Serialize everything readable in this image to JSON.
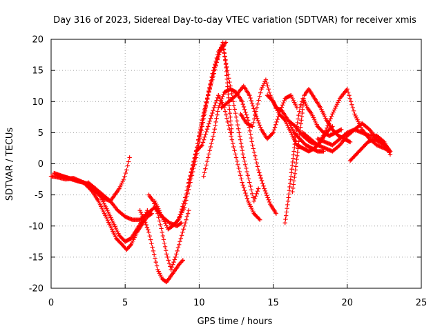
{
  "chart_data": {
    "type": "scatter",
    "title": "Day 316 of 2023, Sidereal Day-to-day VTEC variation (SDTVAR) for receiver xmis",
    "xlabel": "GPS time / hours",
    "ylabel": "SDTVAR / TECUs",
    "xlim": [
      0,
      25
    ],
    "ylim": [
      -20,
      20
    ],
    "xticks": [
      "0",
      "5",
      "10",
      "15",
      "20",
      "25"
    ],
    "yticks": [
      "-20",
      "-15",
      "-10",
      "-5",
      "0",
      "5",
      "10",
      "15",
      "20"
    ],
    "grid": true,
    "marker": "+",
    "color": "#ff0000",
    "series": [
      {
        "x": [
          0.0,
          0.5,
          1.0,
          1.5,
          2.0,
          2.5,
          3.0,
          3.5,
          4.0,
          4.3,
          4.6,
          4.9,
          5.1,
          5.3
        ],
        "y": [
          -2.0,
          -2.2,
          -2.5,
          -2.3,
          -2.8,
          -3.5,
          -4.5,
          -5.5,
          -6.0,
          -5.0,
          -4.0,
          -2.5,
          -1.0,
          1.0
        ]
      },
      {
        "x": [
          0.2,
          0.8,
          1.5,
          2.2,
          2.8,
          3.2,
          3.6,
          4.0,
          4.4,
          4.8,
          5.1,
          5.4,
          5.8,
          6.2,
          6.5,
          6.8
        ],
        "y": [
          -1.5,
          -2.0,
          -2.5,
          -3.0,
          -4.5,
          -6.0,
          -8.0,
          -10.0,
          -12.0,
          -13.0,
          -13.8,
          -13.0,
          -11.0,
          -9.5,
          -8.5,
          -8.0
        ]
      },
      {
        "x": [
          0.4,
          1.0,
          1.8,
          2.5,
          3.0,
          3.4,
          3.8,
          4.2,
          4.6,
          5.0,
          5.4,
          5.8,
          6.2,
          6.5
        ],
        "y": [
          -1.8,
          -2.2,
          -2.8,
          -3.2,
          -4.0,
          -5.5,
          -7.5,
          -9.5,
          -11.5,
          -12.5,
          -12.0,
          -10.5,
          -9.0,
          -7.5
        ]
      },
      {
        "x": [
          2.5,
          3.0,
          3.5,
          4.0,
          4.5,
          5.0,
          5.5,
          6.0,
          6.5,
          7.0,
          7.5,
          8.0,
          8.5,
          8.8
        ],
        "y": [
          -3.0,
          -4.0,
          -5.0,
          -6.0,
          -7.5,
          -8.5,
          -9.0,
          -9.0,
          -8.0,
          -7.0,
          -8.5,
          -9.5,
          -10.0,
          -9.5
        ]
      },
      {
        "x": [
          6.0,
          6.3,
          6.6,
          6.9,
          7.2,
          7.5,
          7.8,
          8.1,
          8.4,
          8.7,
          8.9
        ],
        "y": [
          -7.5,
          -9.0,
          -11.0,
          -14.0,
          -17.0,
          -18.5,
          -19.0,
          -18.0,
          -17.0,
          -16.0,
          -15.5
        ]
      },
      {
        "x": [
          6.6,
          6.9,
          7.2,
          7.5,
          7.8,
          8.1,
          8.4,
          8.7,
          9.0,
          9.3
        ],
        "y": [
          -5.0,
          -6.0,
          -8.0,
          -11.0,
          -14.5,
          -17.0,
          -15.0,
          -12.5,
          -10.0,
          -7.5
        ]
      },
      {
        "x": [
          7.0,
          7.3,
          7.6,
          7.9,
          8.2,
          8.6,
          9.0,
          9.4,
          9.8,
          10.2,
          10.6,
          11.0,
          11.4,
          11.8
        ],
        "y": [
          -6.0,
          -7.5,
          -9.0,
          -10.5,
          -10.0,
          -9.0,
          -7.0,
          -3.0,
          1.0,
          6.0,
          11.0,
          15.0,
          18.0,
          19.5
        ]
      },
      {
        "x": [
          8.6,
          9.0,
          9.4,
          9.8,
          10.2,
          10.6,
          11.0,
          11.3,
          11.6,
          11.8,
          12.0,
          12.2
        ],
        "y": [
          -9.0,
          -6.0,
          -2.0,
          2.0,
          7.0,
          11.0,
          14.5,
          17.5,
          19.5,
          16.0,
          10.0,
          5.0
        ]
      },
      {
        "x": [
          9.3,
          9.7,
          10.1,
          10.5,
          10.9,
          11.3,
          11.6,
          11.9,
          12.3,
          12.7,
          13.0,
          13.4,
          13.7,
          14.0
        ],
        "y": [
          -3.0,
          1.0,
          5.5,
          10.0,
          14.5,
          18.0,
          19.0,
          15.0,
          10.0,
          5.0,
          1.0,
          -3.0,
          -6.0,
          -4.0
        ]
      },
      {
        "x": [
          9.8,
          10.2,
          10.6,
          11.0,
          11.3,
          11.7,
          12.1,
          12.5,
          12.9,
          13.3,
          13.7,
          14.1
        ],
        "y": [
          2.0,
          3.0,
          6.0,
          9.0,
          11.0,
          9.0,
          5.0,
          1.0,
          -3.0,
          -6.0,
          -8.0,
          -9.0
        ]
      },
      {
        "x": [
          10.3,
          10.6,
          11.0,
          11.3,
          11.7,
          12.1,
          12.5,
          12.9,
          13.3,
          13.6,
          14.0,
          14.4,
          14.8,
          15.2
        ],
        "y": [
          -2.0,
          1.0,
          5.0,
          9.0,
          11.5,
          12.0,
          11.5,
          10.0,
          7.0,
          3.0,
          -1.0,
          -4.0,
          -6.5,
          -8.0
        ]
      },
      {
        "x": [
          11.5,
          12.0,
          12.5,
          13.0,
          13.4,
          13.8,
          14.2,
          14.6,
          15.0,
          15.4,
          15.8,
          16.2,
          16.6
        ],
        "y": [
          9.0,
          10.0,
          11.0,
          12.5,
          11.0,
          8.0,
          5.5,
          4.0,
          5.0,
          8.0,
          10.5,
          11.0,
          9.0
        ]
      },
      {
        "x": [
          12.8,
          13.2,
          13.6,
          13.9,
          14.2,
          14.5,
          14.8,
          15.2,
          15.6,
          16.0,
          16.4,
          16.8,
          17.2,
          17.6,
          18.0,
          18.4
        ],
        "y": [
          8.0,
          6.5,
          6.0,
          9.0,
          12.0,
          13.5,
          11.0,
          9.0,
          8.5,
          7.0,
          5.0,
          4.0,
          3.0,
          2.5,
          2.0,
          2.0
        ]
      },
      {
        "x": [
          14.6,
          15.0,
          15.4,
          15.8,
          16.2,
          16.6,
          17.0,
          17.4,
          17.8,
          18.2,
          18.6,
          19.0
        ],
        "y": [
          11.0,
          10.0,
          8.0,
          7.0,
          5.0,
          3.0,
          2.5,
          2.0,
          2.5,
          3.5,
          5.0,
          6.0
        ]
      },
      {
        "x": [
          15.8,
          16.0,
          16.2,
          16.4,
          16.6,
          16.8,
          17.0,
          17.3,
          17.6,
          18.0,
          18.4,
          18.8,
          19.2,
          19.6
        ],
        "y": [
          -9.5,
          -6.0,
          -2.0,
          2.0,
          6.0,
          9.0,
          10.5,
          9.0,
          8.0,
          6.0,
          5.0,
          4.5,
          5.0,
          5.5
        ]
      },
      {
        "x": [
          16.3,
          16.5,
          16.7,
          16.9,
          17.1,
          17.4,
          17.8,
          18.2,
          18.6,
          19.0,
          19.4,
          19.8,
          20.2
        ],
        "y": [
          -4.5,
          -1.0,
          3.0,
          7.0,
          11.0,
          12.0,
          10.5,
          9.0,
          7.0,
          5.5,
          4.5,
          4.0,
          3.5
        ]
      },
      {
        "x": [
          16.0,
          16.5,
          17.0,
          17.5,
          18.0,
          18.5,
          19.0,
          19.5,
          20.0,
          20.5,
          21.0,
          21.5,
          22.0,
          22.5,
          22.9
        ],
        "y": [
          7.0,
          6.0,
          4.5,
          3.5,
          3.0,
          5.0,
          8.0,
          10.5,
          12.0,
          8.0,
          5.5,
          4.0,
          3.0,
          2.5,
          2.0
        ]
      },
      {
        "x": [
          17.0,
          17.5,
          18.0,
          18.5,
          19.0,
          19.5,
          20.0,
          20.5,
          21.0,
          21.5,
          22.0,
          22.5,
          22.9
        ],
        "y": [
          5.0,
          4.0,
          3.0,
          2.5,
          2.0,
          3.0,
          4.5,
          5.5,
          6.5,
          5.5,
          4.0,
          3.0,
          2.0
        ]
      },
      {
        "x": [
          18.0,
          18.5,
          19.0,
          19.5,
          20.0,
          20.5,
          21.0,
          21.5,
          22.0,
          22.5,
          22.9
        ],
        "y": [
          4.0,
          3.5,
          3.0,
          4.0,
          5.0,
          5.5,
          5.0,
          4.5,
          4.5,
          3.5,
          1.5
        ]
      },
      {
        "x": [
          20.2,
          20.6,
          21.0,
          21.4,
          21.8,
          22.2,
          22.6,
          22.9
        ],
        "y": [
          0.5,
          1.5,
          2.5,
          3.5,
          4.0,
          3.5,
          3.0,
          2.0
        ]
      }
    ]
  }
}
